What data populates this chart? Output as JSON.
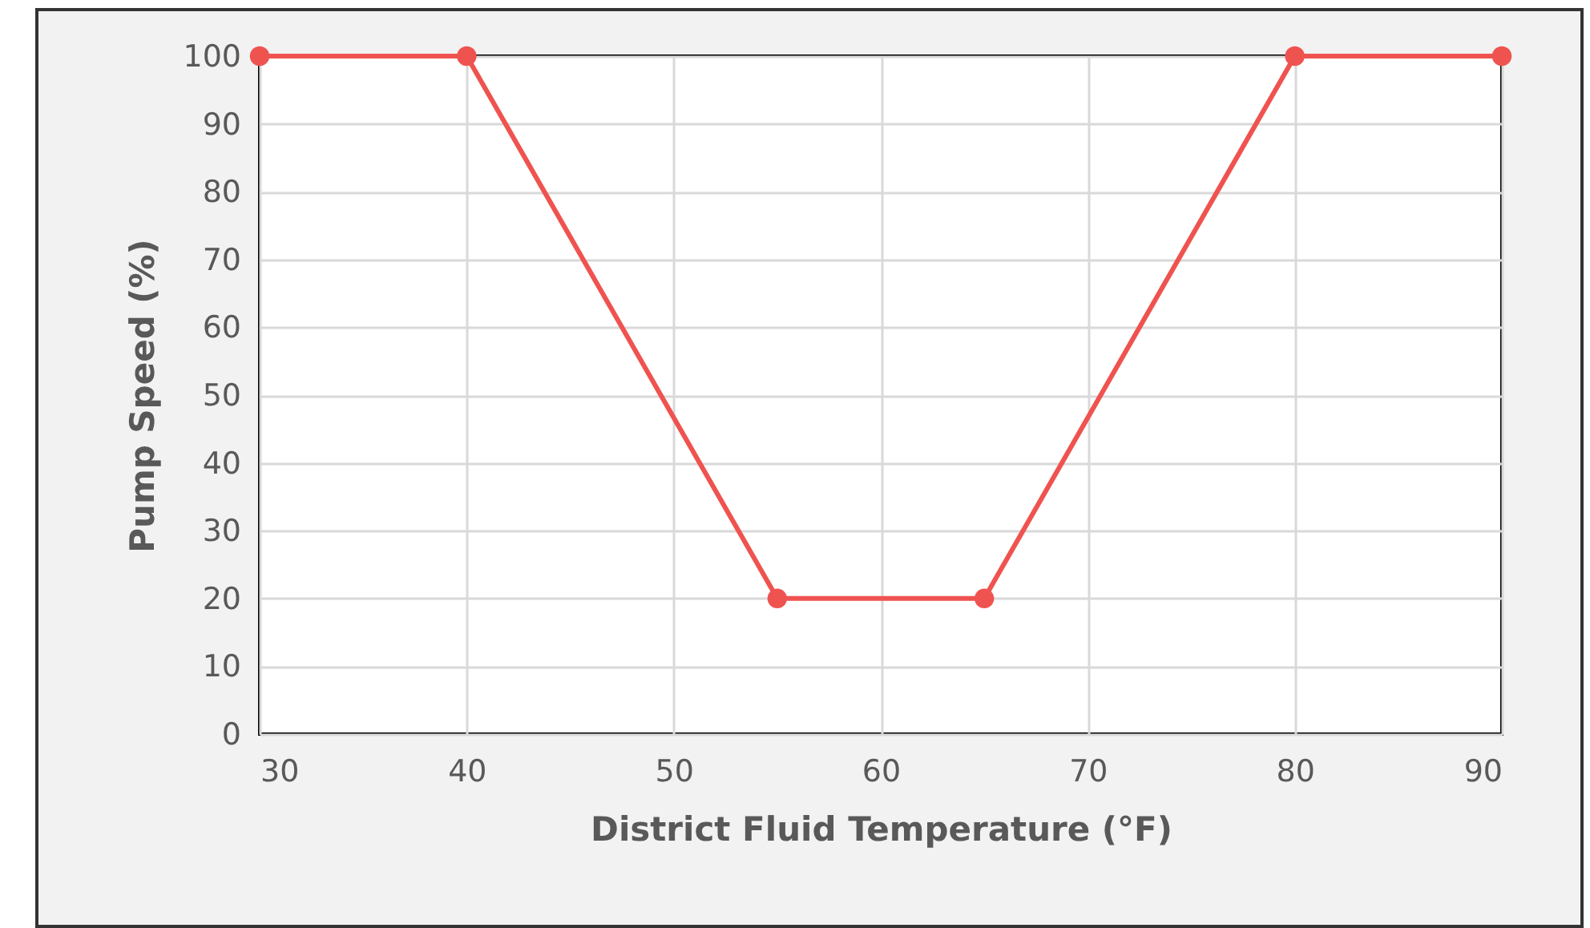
{
  "chart_data": {
    "type": "line",
    "xlabel": "District Fluid Temperature (°F)",
    "ylabel": "Pump Speed (%)",
    "x": [
      30,
      40,
      55,
      65,
      80,
      90
    ],
    "series": [
      {
        "color": "#ef5350",
        "values": [
          100,
          100,
          20,
          20,
          100,
          100
        ]
      }
    ],
    "xlim": [
      30,
      90
    ],
    "xticks": [
      30,
      40,
      50,
      60,
      70,
      80,
      90
    ],
    "ylim": [
      0,
      100
    ],
    "yticks": [
      0,
      10,
      20,
      30,
      40,
      50,
      60,
      70,
      80,
      90,
      100
    ],
    "grid": true,
    "marker": "circle",
    "line_style": "solid",
    "legend": false
  }
}
